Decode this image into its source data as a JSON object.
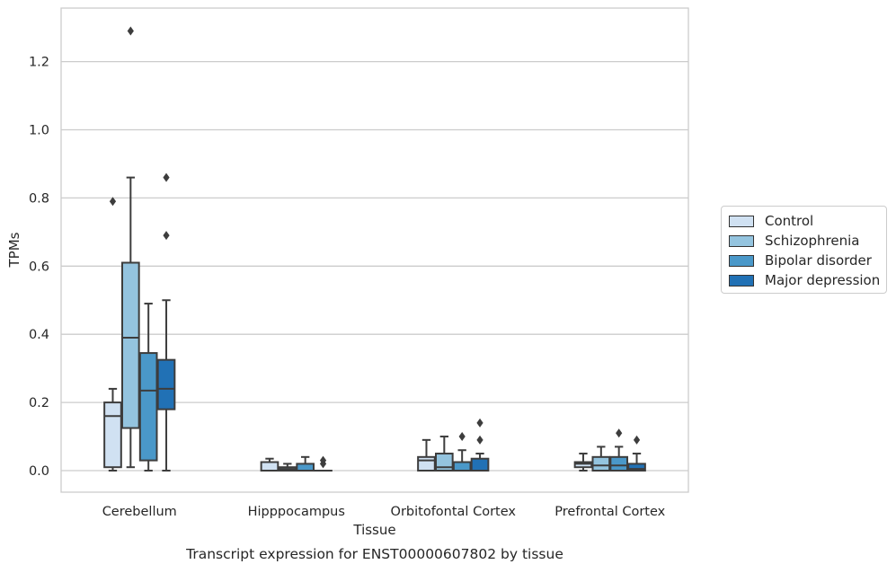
{
  "chart_data": {
    "type": "box",
    "title": "Transcript expression for ENST00000607802 by tissue",
    "xlabel": "Tissue",
    "ylabel": "TPMs",
    "ylim": [
      -0.06,
      1.35
    ],
    "yticks": [
      0.0,
      0.2,
      0.4,
      0.6,
      0.8,
      1.0,
      1.2
    ],
    "ytick_labels": [
      "0.0",
      "0.2",
      "0.4",
      "0.6",
      "0.8",
      "1.0",
      "1.2"
    ],
    "grid": "horizontal",
    "legend_position": "right",
    "categories": [
      "Cerebellum",
      "Hipppocampus",
      "Orbitofontal Cortex",
      "Prefrontal Cortex"
    ],
    "series": [
      {
        "name": "Control",
        "color": "#d0e1f2",
        "boxes": [
          {
            "whislo": 0.0,
            "q1": 0.01,
            "med": 0.16,
            "q3": 0.2,
            "whishi": 0.24,
            "fliers": [
              0.79
            ]
          },
          {
            "whislo": 0.0,
            "q1": 0.0,
            "med": 0.0,
            "q3": 0.025,
            "whishi": 0.035,
            "fliers": []
          },
          {
            "whislo": 0.0,
            "q1": 0.0,
            "med": 0.03,
            "q3": 0.04,
            "whishi": 0.09,
            "fliers": []
          },
          {
            "whislo": 0.0,
            "q1": 0.01,
            "med": 0.02,
            "q3": 0.025,
            "whishi": 0.05,
            "fliers": []
          }
        ]
      },
      {
        "name": "Schizophrenia",
        "color": "#94c4df",
        "boxes": [
          {
            "whislo": 0.01,
            "q1": 0.125,
            "med": 0.39,
            "q3": 0.61,
            "whishi": 0.86,
            "fliers": [
              1.29
            ]
          },
          {
            "whislo": 0.0,
            "q1": 0.0,
            "med": 0.005,
            "q3": 0.01,
            "whishi": 0.02,
            "fliers": []
          },
          {
            "whislo": 0.0,
            "q1": 0.0,
            "med": 0.01,
            "q3": 0.05,
            "whishi": 0.1,
            "fliers": []
          },
          {
            "whislo": 0.0,
            "q1": 0.0,
            "med": 0.015,
            "q3": 0.04,
            "whishi": 0.07,
            "fliers": []
          }
        ]
      },
      {
        "name": "Bipolar disorder",
        "color": "#4a98c9",
        "boxes": [
          {
            "whislo": 0.0,
            "q1": 0.03,
            "med": 0.235,
            "q3": 0.345,
            "whishi": 0.49,
            "fliers": []
          },
          {
            "whislo": 0.0,
            "q1": 0.0,
            "med": 0.0,
            "q3": 0.02,
            "whishi": 0.04,
            "fliers": []
          },
          {
            "whislo": 0.0,
            "q1": 0.0,
            "med": 0.0,
            "q3": 0.025,
            "whishi": 0.06,
            "fliers": [
              0.1
            ]
          },
          {
            "whislo": 0.0,
            "q1": 0.0,
            "med": 0.015,
            "q3": 0.04,
            "whishi": 0.07,
            "fliers": [
              0.11
            ]
          }
        ]
      },
      {
        "name": "Major depression",
        "color": "#2171b5",
        "boxes": [
          {
            "whislo": 0.0,
            "q1": 0.18,
            "med": 0.24,
            "q3": 0.325,
            "whishi": 0.5,
            "fliers": [
              0.69,
              0.86
            ]
          },
          {
            "whislo": 0.0,
            "q1": 0.0,
            "med": 0.0,
            "q3": 0.0,
            "whishi": 0.0,
            "fliers": [
              0.02,
              0.03
            ]
          },
          {
            "whislo": 0.0,
            "q1": 0.0,
            "med": 0.0,
            "q3": 0.035,
            "whishi": 0.05,
            "fliers": [
              0.09,
              0.14
            ]
          },
          {
            "whislo": 0.0,
            "q1": 0.0,
            "med": 0.005,
            "q3": 0.02,
            "whishi": 0.05,
            "fliers": [
              0.09
            ]
          }
        ]
      }
    ]
  }
}
